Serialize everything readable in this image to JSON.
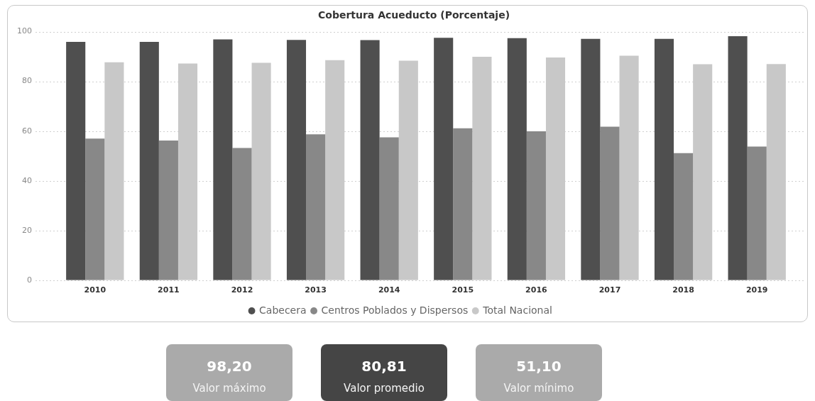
{
  "chart_data": [
    {
      "type": "bar",
      "title": "Cobertura Acueducto (Porcentaje)",
      "categories": [
        "2010",
        "2011",
        "2012",
        "2013",
        "2014",
        "2015",
        "2016",
        "2017",
        "2018",
        "2019"
      ],
      "series": [
        {
          "name": "Cabecera",
          "color": "#4f4f4f",
          "values": [
            95.9,
            95.9,
            96.9,
            96.7,
            96.6,
            97.5,
            97.4,
            97.1,
            97.1,
            98.2
          ]
        },
        {
          "name": "Centros Poblados y Dispersos",
          "color": "#888888",
          "values": [
            57.0,
            56.2,
            53.2,
            58.7,
            57.5,
            61.1,
            59.9,
            61.8,
            51.1,
            53.8
          ]
        },
        {
          "name": "Total Nacional",
          "color": "#c8c8c8",
          "values": [
            87.7,
            87.2,
            87.5,
            88.5,
            88.3,
            89.9,
            89.6,
            90.3,
            86.9,
            87.0
          ]
        }
      ],
      "ylim": [
        0,
        100
      ],
      "yticks": [
        0,
        20,
        40,
        60,
        80,
        100
      ],
      "grid": "y",
      "legend": "bottom"
    },
    {
      "type": "other",
      "categories": [
        "Valor máximo",
        "Valor promedio",
        "Valor mínimo"
      ],
      "value_labels": [
        "98,20",
        "80,81",
        "51,10"
      ],
      "colors": [
        "#aaaaaa",
        "#454545",
        "#aaaaaa"
      ]
    }
  ]
}
